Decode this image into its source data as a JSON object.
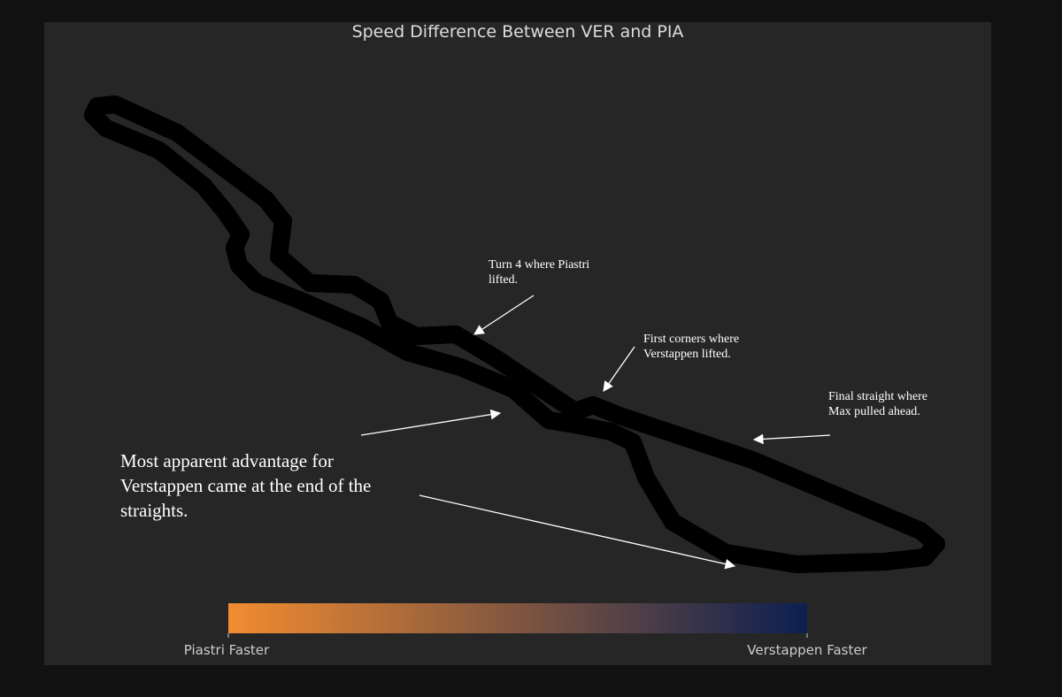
{
  "title": "Speed Difference Between VER and PIA",
  "annotations": [
    {
      "lines": [
        "Turn 4 where Piastri",
        "lifted."
      ]
    },
    {
      "lines": [
        "First corners where",
        "Verstappen lifted."
      ]
    },
    {
      "lines": [
        "Final straight where",
        "Max pulled ahead."
      ]
    },
    {
      "lines": [
        "Most apparent advantage for",
        "Verstappen came at the end of the",
        "straights."
      ]
    }
  ],
  "colorbar": {
    "low_label": "Piastri Faster",
    "high_label": "Verstappen Faster",
    "low_color": "#f28c30",
    "high_color": "#0c1f50"
  }
}
